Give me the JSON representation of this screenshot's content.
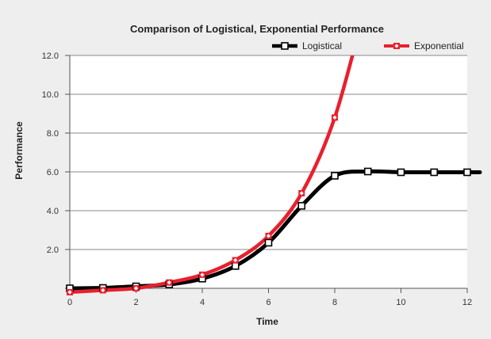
{
  "chart_data": {
    "type": "line",
    "title": "Comparison of Logistical, Exponential Performance",
    "xlabel": "Time",
    "ylabel": "Performance",
    "xlim": [
      0,
      12
    ],
    "ylim": [
      0,
      12
    ],
    "x_ticks": [
      "0",
      "2",
      "4",
      "6",
      "8",
      "10",
      "12"
    ],
    "y_ticks": [
      "",
      "2.0",
      "4.0",
      "6.0",
      "8.0",
      "10.0",
      "12.0"
    ],
    "grid": "horizontal",
    "legend_position": "top-right",
    "series": [
      {
        "name": "Logistical",
        "color": "#000000",
        "marker": "square",
        "x": [
          0,
          1,
          2,
          3,
          4,
          5,
          6,
          7,
          8,
          9,
          10,
          11,
          12
        ],
        "y": [
          0.0,
          0.02,
          0.1,
          0.2,
          0.5,
          1.15,
          2.35,
          4.25,
          5.8,
          6.02,
          5.98,
          5.98,
          5.98
        ]
      },
      {
        "name": "Exponential",
        "color": "#e8202e",
        "marker": "diamond",
        "x": [
          0,
          1,
          2,
          3,
          4,
          5,
          6,
          7,
          8
        ],
        "y": [
          -0.2,
          -0.1,
          0.0,
          0.3,
          0.7,
          1.45,
          2.7,
          4.9,
          8.8
        ]
      }
    ]
  }
}
